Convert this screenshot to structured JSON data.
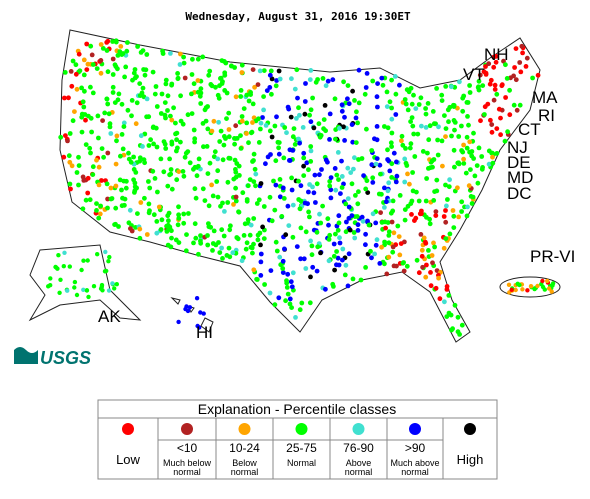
{
  "header": {
    "title": "Wednesday, August 31, 2016 19:30ET"
  },
  "map": {
    "labels": [
      "NH",
      "VT",
      "MA",
      "RI",
      "CT",
      "NJ",
      "DE",
      "MD",
      "DC",
      "PR-VI",
      "AK",
      "HI"
    ]
  },
  "logo": "USGS",
  "legend": {
    "title": "Explanation - Percentile classes",
    "classes": [
      {
        "color": "#ff0000",
        "label": "Low"
      },
      {
        "color": "#b22222",
        "label": "<10",
        "description": "Much below normal"
      },
      {
        "color": "#ffa500",
        "label": "10-24",
        "description": "Below normal"
      },
      {
        "color": "#00ff00",
        "label": "25-75",
        "description": "Normal"
      },
      {
        "color": "#40e0d0",
        "label": "76-90",
        "description": "Above normal"
      },
      {
        "color": "#0000ff",
        "label": ">90",
        "description": "Much above normal"
      },
      {
        "color": "#000000",
        "label": "High"
      }
    ]
  }
}
